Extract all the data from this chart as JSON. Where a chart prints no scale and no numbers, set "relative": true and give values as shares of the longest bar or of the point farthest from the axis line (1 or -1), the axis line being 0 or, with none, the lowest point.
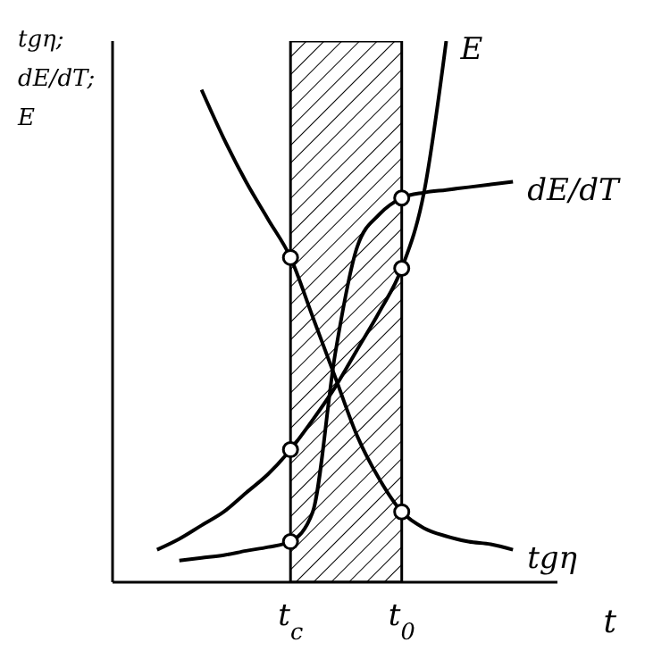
{
  "chart_data": {
    "type": "line",
    "relative": true,
    "xlabel": "t",
    "ylabel": "tgη; dE/dT; E",
    "line_style": "solid",
    "marker": "none",
    "categories": [
      null,
      null,
      null,
      null,
      null,
      null,
      null,
      null,
      "t$_{c}$",
      null,
      null,
      null,
      null,
      "t$_{0}$",
      null,
      null,
      null,
      null,
      null,
      null,
      null
    ],
    "bands": [
      {
        "axis": "x",
        "from": "t$_{c}$",
        "to": "t$_{0}$"
      }
    ],
    "series": [
      {
        "name": "tgη",
        "color": "#000000",
        "values": [
          null,
          null,
          null,
          null,
          0.91,
          0.82,
          0.74,
          0.67,
          0.6,
          0.49,
          0.38,
          0.27,
          0.19,
          0.13,
          0.1,
          0.085,
          0.075,
          0.07,
          0.06,
          null,
          null
        ]
      },
      {
        "name": "E",
        "color": "#000000",
        "values": [
          null,
          null,
          0.06,
          0.08,
          0.105,
          0.13,
          0.165,
          0.2,
          0.245,
          0.3,
          0.36,
          0.43,
          0.5,
          0.58,
          0.72,
          1,
          null,
          null,
          null,
          null,
          null
        ]
      },
      {
        "name": "dE/dT",
        "color": "#000000",
        "values": [
          null,
          null,
          null,
          0.04,
          0.045,
          0.05,
          0.058,
          0.065,
          0.075,
          0.13,
          0.42,
          0.62,
          0.68,
          0.71,
          0.72,
          0.725,
          0.73,
          0.735,
          0.74,
          null,
          null
        ]
      },
      {
        "type": "scatter",
        "marker": "circle",
        "color": "#000000",
        "x": [
          "t$_{c}$",
          "t$_{c}$",
          "t$_{c}$",
          "t$_{0}$",
          "t$_{0}$",
          "t$_{0}$"
        ],
        "values": [
          0.6,
          0.245,
          0.075,
          0.13,
          0.58,
          0.71
        ]
      }
    ]
  }
}
